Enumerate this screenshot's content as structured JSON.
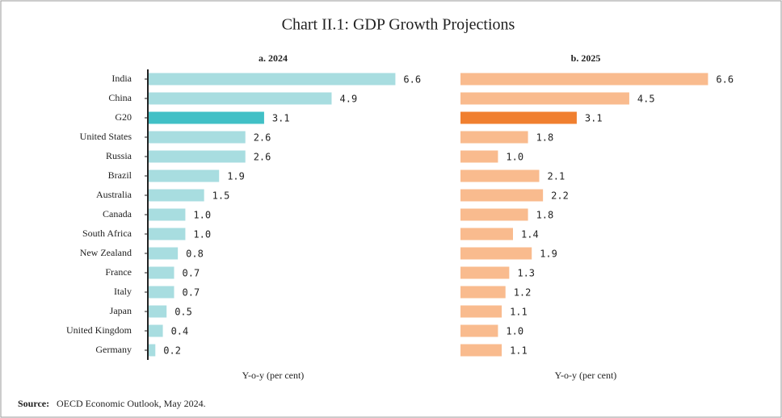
{
  "title": "Chart II.1: GDP Growth Projections",
  "source_label": "Source:",
  "source": "OECD Economic Outlook, May 2024.",
  "chart_data": [
    {
      "type": "barh",
      "subtitle": "a. 2024",
      "xlabel": "Y-o-y (per cent)",
      "categories": [
        "India",
        "China",
        "G20",
        "United States",
        "Russia",
        "Brazil",
        "Australia",
        "Canada",
        "South Africa",
        "New Zealand",
        "France",
        "Italy",
        "Japan",
        "United Kingdom",
        "Germany"
      ],
      "values": [
        6.6,
        4.9,
        3.1,
        2.6,
        2.6,
        1.9,
        1.5,
        1.0,
        1.0,
        0.8,
        0.7,
        0.7,
        0.5,
        0.4,
        0.2
      ],
      "value_labels": [
        "6.6",
        "4.9",
        "3.1",
        "2.6",
        "2.6",
        "1.9",
        "1.5",
        "1.0",
        "1.0",
        "0.8",
        "0.7",
        "0.7",
        "0.5",
        "0.4",
        "0.2"
      ],
      "colors": [
        "#a8dde0",
        "#a8dde0",
        "#41c0c6",
        "#a8dde0",
        "#a8dde0",
        "#a8dde0",
        "#a8dde0",
        "#a8dde0",
        "#a8dde0",
        "#a8dde0",
        "#a8dde0",
        "#a8dde0",
        "#a8dde0",
        "#a8dde0",
        "#a8dde0"
      ],
      "xlim": [
        0,
        7
      ],
      "axis_line": true
    },
    {
      "type": "barh",
      "subtitle": "b. 2025",
      "xlabel": "Y-o-y (per cent)",
      "values": [
        6.6,
        4.5,
        3.1,
        1.8,
        1.0,
        2.1,
        2.2,
        1.8,
        1.4,
        1.9,
        1.3,
        1.2,
        1.1,
        1.0,
        1.1
      ],
      "value_labels": [
        "6.6",
        "4.5",
        "3.1",
        "1.8",
        "1.0",
        "2.1",
        "2.2",
        "1.8",
        "1.4",
        "1.9",
        "1.3",
        "1.2",
        "1.1",
        "1.0",
        "1.1"
      ],
      "colors": [
        "#f9bb8e",
        "#f9bb8e",
        "#f07f2f",
        "#f9bb8e",
        "#f9bb8e",
        "#f9bb8e",
        "#f9bb8e",
        "#f9bb8e",
        "#f9bb8e",
        "#f9bb8e",
        "#f9bb8e",
        "#f9bb8e",
        "#f9bb8e",
        "#f9bb8e",
        "#f9bb8e"
      ],
      "xlim": [
        0,
        7
      ],
      "axis_line": false
    }
  ]
}
